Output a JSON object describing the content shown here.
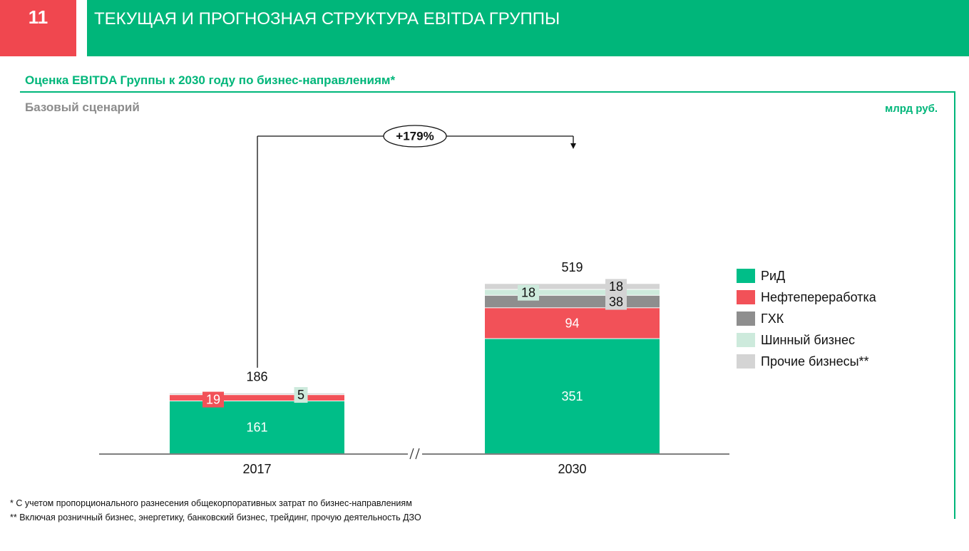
{
  "header": {
    "page_number": "11",
    "title": "ТЕКУЩАЯ И ПРОГНОЗНАЯ СТРУКТУРА EBITDA ГРУППЫ"
  },
  "subtitle": "Оценка EBITDA Группы к 2030 году по бизнес-направлениям*",
  "scenario": "Базовый сценарий",
  "units": "млрд руб.",
  "growth_label": "+179%",
  "axis_break": "//",
  "colors": {
    "brand_green": "#00b67a",
    "brand_red": "#f0474f"
  },
  "chart_data": {
    "type": "bar",
    "stacked": true,
    "categories": [
      "2017",
      "2030"
    ],
    "totals": [
      186,
      519
    ],
    "series": [
      {
        "name": "РиД",
        "values": [
          161,
          351
        ],
        "labels": [
          "161",
          "351"
        ],
        "color": "#00be88"
      },
      {
        "name": "Нефтепереработка",
        "values": [
          19,
          94
        ],
        "labels": [
          "19",
          "94"
        ],
        "color": "#f25158"
      },
      {
        "name": "ГХК",
        "values": [
          0,
          38
        ],
        "labels": [
          "",
          "38"
        ],
        "color": "#8e8e8e"
      },
      {
        "name": "Шинный бизнес",
        "values": [
          0,
          18
        ],
        "labels": [
          "",
          "18"
        ],
        "color": "#cdeadc"
      },
      {
        "name": "Прочие бизнесы**",
        "values": [
          5,
          18
        ],
        "labels": [
          "5",
          "18"
        ],
        "color": "#d4d4d4"
      }
    ],
    "legend_position": "right",
    "grid": false
  },
  "footnotes": [
    "* С учетом пропорционального разнесения общекорпоративных затрат по бизнес-направлениям",
    "** Включая розничный бизнес, энергетику, банковский бизнес, трейдинг, прочую деятельность ДЗО"
  ]
}
